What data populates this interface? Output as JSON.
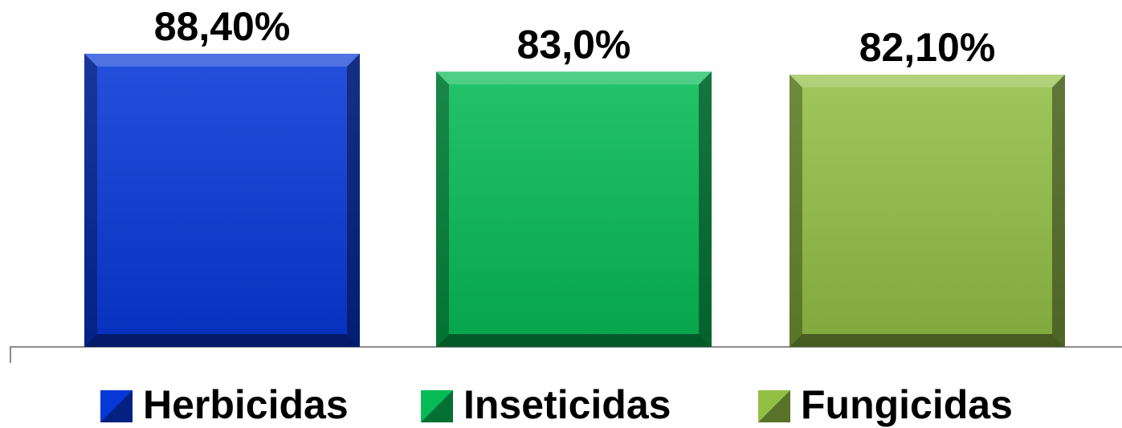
{
  "chart_data": {
    "type": "bar",
    "categories": [
      null
    ],
    "series": [
      {
        "name": "Herbicidas",
        "color": "#0638d8",
        "values": [
          88.4
        ],
        "value_labels": [
          "88,40%"
        ]
      },
      {
        "name": "Inseticidas",
        "color": "#06bb55",
        "values": [
          83.0
        ],
        "value_labels": [
          "83,0%"
        ]
      },
      {
        "name": "Fungicidas",
        "color": "#93bf45",
        "values": [
          82.1
        ],
        "value_labels": [
          "82,10%"
        ]
      }
    ],
    "ylim": [
      0,
      100
    ]
  }
}
